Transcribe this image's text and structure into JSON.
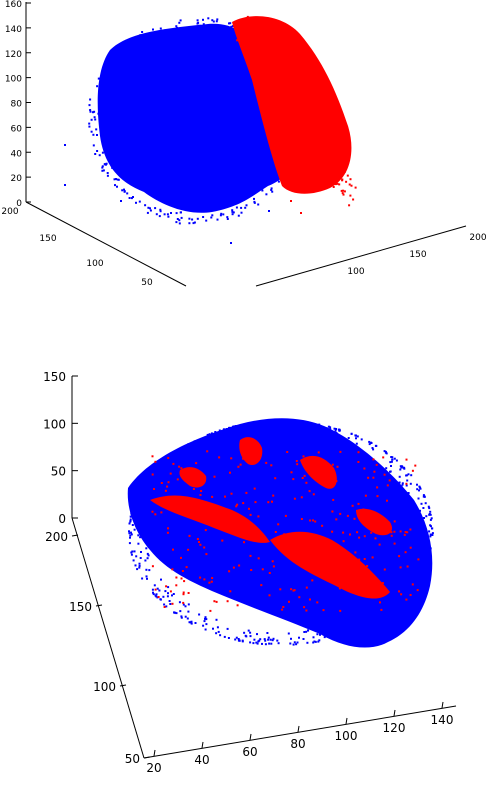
{
  "colors": {
    "series_a": "#0000ff",
    "series_b": "#ff0000",
    "axis": "#000000"
  },
  "chart_data": [
    {
      "type": "scatter",
      "title": "",
      "xlabel": "",
      "ylabel": "",
      "zlabel": "",
      "grid": false,
      "axes": {
        "z_ticks": [
          "0",
          "20",
          "40",
          "60",
          "80",
          "100",
          "120",
          "140",
          "160"
        ],
        "y_ticks": [
          "200",
          "150",
          "100",
          "50"
        ],
        "x_ticks": [
          "100",
          "150",
          "200"
        ],
        "zlim": [
          0,
          160
        ]
      },
      "series": [
        {
          "color": "#0000ff",
          "extent": {
            "x": [
              80,
              200
            ],
            "y": [
              50,
              200
            ],
            "z": [
              0,
              150
            ]
          }
        },
        {
          "color": "#ff0000",
          "extent": {
            "x": [
              150,
              200
            ],
            "y": [
              100,
              200
            ],
            "z": [
              20,
              150
            ]
          }
        }
      ]
    },
    {
      "type": "scatter",
      "title": "",
      "xlabel": "",
      "ylabel": "",
      "zlabel": "",
      "grid": false,
      "axes": {
        "z_ticks": [
          "0",
          "50",
          "100",
          "150"
        ],
        "y_ticks": [
          "200",
          "150",
          "100",
          "50"
        ],
        "x_ticks": [
          "20",
          "40",
          "60",
          "80",
          "100",
          "120",
          "140"
        ],
        "zlim": [
          0,
          150
        ]
      },
      "series": [
        {
          "color": "#0000ff",
          "extent": {
            "x": [
              20,
              150
            ],
            "y": [
              50,
              200
            ],
            "z": [
              0,
              110
            ]
          }
        },
        {
          "color": "#ff0000",
          "extent": {
            "x": [
              40,
              140
            ],
            "y": [
              70,
              190
            ],
            "z": [
              0,
              80
            ]
          }
        }
      ]
    }
  ]
}
